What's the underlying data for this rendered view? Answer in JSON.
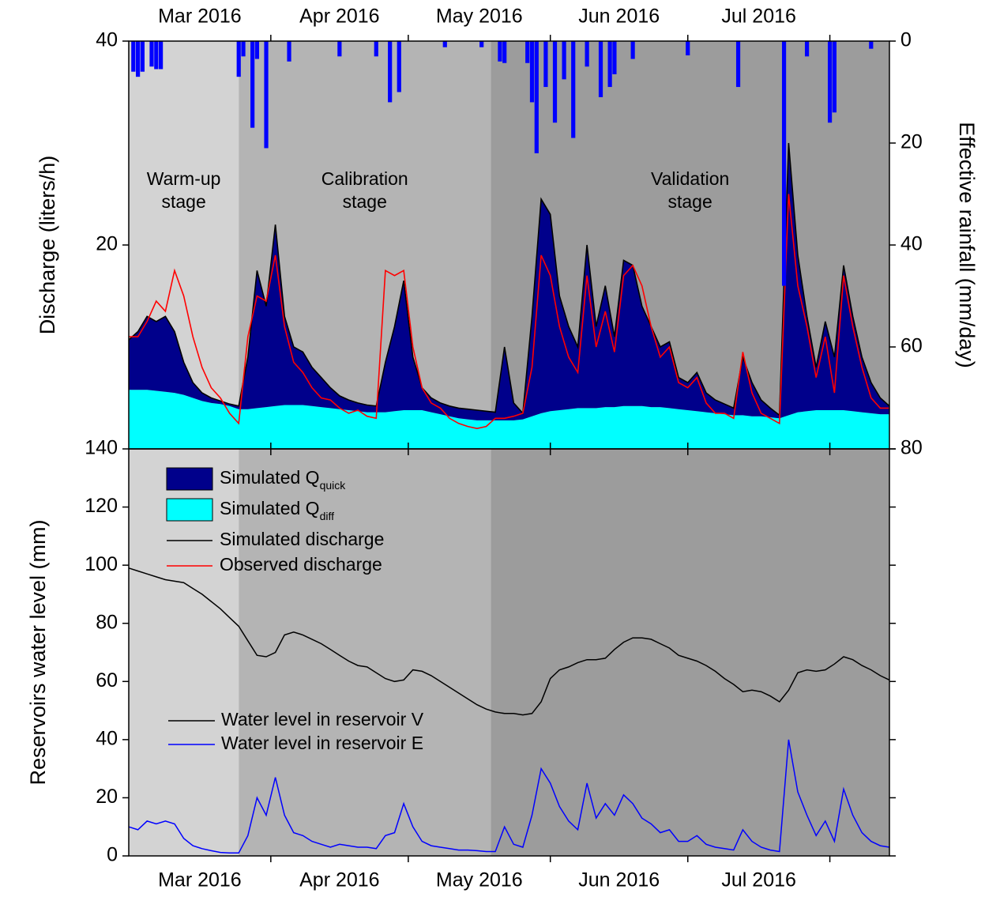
{
  "chart_data": [
    {
      "type": "hydrograph",
      "ylabel": "Discharge (liters/h)",
      "y2label": "Effective rainfall (mm/day)",
      "xlim": [
        0,
        166
      ],
      "xticks": [
        {
          "value": 15.5,
          "label": "Mar 2016"
        },
        {
          "value": 46,
          "label": "Apr 2016"
        },
        {
          "value": 76.5,
          "label": "May 2016"
        },
        {
          "value": 107,
          "label": "Jun 2016"
        },
        {
          "value": 137.5,
          "label": "Jul 2016"
        }
      ],
      "xminor": [
        31,
        61,
        92,
        122,
        153
      ],
      "ylim": [
        0,
        40
      ],
      "yticks": [
        20,
        40
      ],
      "y2lim": [
        0,
        80
      ],
      "y2ticks": [
        0,
        20,
        40,
        60,
        80
      ],
      "y2_inverted": true,
      "stages": [
        {
          "label": [
            "Warm-up",
            "stage"
          ],
          "start": 0,
          "end": 24,
          "color": "#d3d3d3"
        },
        {
          "label": [
            "Calibration",
            "stage"
          ],
          "start": 24,
          "end": 79,
          "color": "#b4b4b4"
        },
        {
          "label": [
            "Validation",
            "stage"
          ],
          "start": 79,
          "end": 166,
          "color": "#9c9c9c"
        }
      ],
      "x": [
        0,
        2,
        4,
        6,
        8,
        10,
        12,
        14,
        16,
        18,
        20,
        22,
        24,
        26,
        28,
        30,
        32,
        34,
        36,
        38,
        40,
        42,
        44,
        46,
        48,
        50,
        52,
        54,
        56,
        58,
        60,
        62,
        64,
        66,
        68,
        70,
        72,
        74,
        76,
        78,
        80,
        82,
        84,
        86,
        88,
        90,
        92,
        94,
        96,
        98,
        100,
        102,
        104,
        106,
        108,
        110,
        112,
        114,
        116,
        118,
        120,
        122,
        124,
        126,
        128,
        130,
        132,
        134,
        136,
        138,
        140,
        142,
        144,
        146,
        148,
        150,
        152,
        154,
        156,
        158,
        160,
        162,
        164,
        166
      ],
      "series": [
        {
          "name": "Simulated Q",
          "subscript": "quick",
          "kind": "area",
          "color": "#00008b",
          "values": [
            4.9,
            5.7,
            7.2,
            6.8,
            7.4,
            6.0,
            3.2,
            1.5,
            0.8,
            0.5,
            0.3,
            0.2,
            0.3,
            5.1,
            13.5,
            9.9,
            17.8,
            8.7,
            5.7,
            5.2,
            3.8,
            2.9,
            2.0,
            1.3,
            1.0,
            0.8,
            0.7,
            0.6,
            4.9,
            8.3,
            12.7,
            5.2,
            2.2,
            1.4,
            1.1,
            1.0,
            1.0,
            1.0,
            1.0,
            0.9,
            0.8,
            7.2,
            1.7,
            0.6,
            9.8,
            21.0,
            19.3,
            11.2,
            8.1,
            6.0,
            16.0,
            8.0,
            11.9,
            6.9,
            14.3,
            13.8,
            9.8,
            7.9,
            5.9,
            6.5,
            3.1,
            2.7,
            3.8,
            1.9,
            1.3,
            1.0,
            0.7,
            5.7,
            3.3,
            1.6,
            0.9,
            0.3,
            26.7,
            15.4,
            9.3,
            4.2,
            8.7,
            5.2,
            14.2,
            9.3,
            5.4,
            3.0,
            1.6,
            0.8
          ]
        },
        {
          "name": "Simulated Q",
          "subscript": "diff",
          "kind": "area",
          "color": "#00ffff",
          "values": [
            5.8,
            5.8,
            5.8,
            5.7,
            5.6,
            5.5,
            5.3,
            5.0,
            4.7,
            4.5,
            4.4,
            4.2,
            3.9,
            3.9,
            4.0,
            4.1,
            4.2,
            4.3,
            4.3,
            4.3,
            4.2,
            4.1,
            4.0,
            3.9,
            3.8,
            3.7,
            3.6,
            3.6,
            3.6,
            3.7,
            3.8,
            3.8,
            3.8,
            3.6,
            3.4,
            3.2,
            3.0,
            2.9,
            2.8,
            2.8,
            2.8,
            2.8,
            2.8,
            2.9,
            3.2,
            3.5,
            3.7,
            3.8,
            3.9,
            4.0,
            4.0,
            4.0,
            4.1,
            4.1,
            4.2,
            4.2,
            4.2,
            4.1,
            4.1,
            4.0,
            3.9,
            3.8,
            3.7,
            3.6,
            3.5,
            3.4,
            3.3,
            3.3,
            3.2,
            3.2,
            3.1,
            3.0,
            3.3,
            3.6,
            3.7,
            3.8,
            3.8,
            3.8,
            3.8,
            3.7,
            3.6,
            3.5,
            3.4,
            3.4
          ]
        },
        {
          "name": "Simulated discharge",
          "kind": "line",
          "color": "#000000",
          "values": [
            10.7,
            11.5,
            13.0,
            12.5,
            13.0,
            11.5,
            8.5,
            6.5,
            5.5,
            5.0,
            4.7,
            4.4,
            4.2,
            9.0,
            17.5,
            14.0,
            22.0,
            13.0,
            10.0,
            9.5,
            8.0,
            7.0,
            6.0,
            5.2,
            4.8,
            4.5,
            4.3,
            4.2,
            8.5,
            12.0,
            16.5,
            9.0,
            6.0,
            5.0,
            4.5,
            4.2,
            4.0,
            3.9,
            3.8,
            3.7,
            3.6,
            10.0,
            4.5,
            3.5,
            13.0,
            24.5,
            23.0,
            15.0,
            12.0,
            10.0,
            20.0,
            12.0,
            16.0,
            11.0,
            18.5,
            18.0,
            14.0,
            12.0,
            10.0,
            10.5,
            7.0,
            6.5,
            7.5,
            5.5,
            4.8,
            4.4,
            4.0,
            9.0,
            6.5,
            4.8,
            4.0,
            3.3,
            30.0,
            19.0,
            13.0,
            8.0,
            12.5,
            9.0,
            18.0,
            13.0,
            9.0,
            6.5,
            5.0,
            4.2
          ]
        },
        {
          "name": "Observed discharge",
          "kind": "line",
          "color": "#ff0000",
          "values": [
            11.0,
            11.0,
            12.5,
            14.5,
            13.5,
            17.5,
            15.0,
            11.0,
            8.0,
            6.0,
            5.0,
            3.5,
            2.5,
            11.0,
            15.0,
            14.5,
            19.0,
            12.0,
            8.5,
            7.5,
            6.0,
            5.0,
            4.8,
            4.0,
            3.5,
            3.8,
            3.2,
            3.0,
            17.5,
            17.0,
            17.5,
            10.0,
            6.0,
            4.5,
            4.0,
            3.0,
            2.5,
            2.2,
            2.0,
            2.2,
            3.0,
            3.0,
            3.2,
            3.5,
            8.0,
            19.0,
            17.0,
            12.0,
            9.0,
            7.5,
            17.0,
            10.0,
            13.5,
            9.5,
            17.0,
            18.0,
            16.0,
            12.0,
            9.0,
            10.0,
            6.5,
            6.0,
            7.0,
            4.5,
            3.5,
            3.5,
            3.0,
            9.5,
            5.5,
            3.5,
            3.0,
            2.5,
            25.0,
            16.0,
            12.0,
            7.0,
            11.0,
            5.5,
            17.0,
            12.0,
            8.0,
            5.0,
            4.0,
            4.0
          ]
        },
        {
          "kind": "bar",
          "axis": "y2",
          "color": "#0000ff",
          "x": [
            1,
            2,
            3,
            5,
            6,
            7,
            24,
            25,
            27,
            28,
            30,
            35,
            46,
            54,
            57,
            59,
            69,
            77,
            81,
            82,
            87,
            88,
            89,
            91,
            93,
            95,
            97,
            100,
            103,
            105,
            106,
            110,
            122,
            133,
            143,
            148,
            153,
            154,
            162
          ],
          "values": [
            6,
            7,
            6,
            5,
            5.5,
            5.5,
            7,
            3,
            17,
            3.5,
            21,
            4,
            3,
            3,
            12,
            10,
            1.2,
            1.2,
            4,
            4.3,
            4.3,
            12,
            22,
            9,
            16,
            7.5,
            19,
            5,
            11,
            9,
            6.5,
            3.5,
            2.8,
            9,
            48,
            3,
            16,
            14,
            1.5
          ]
        }
      ]
    },
    {
      "type": "line",
      "ylabel": "Reservoirs water level (mm)",
      "xlim": [
        0,
        166
      ],
      "xticks": [
        {
          "value": 15.5,
          "label": "Mar 2016"
        },
        {
          "value": 46,
          "label": "Apr 2016"
        },
        {
          "value": 76.5,
          "label": "May 2016"
        },
        {
          "value": 107,
          "label": "Jun 2016"
        },
        {
          "value": 137.5,
          "label": "Jul 2016"
        }
      ],
      "xminor": [
        31,
        61,
        92,
        122,
        153
      ],
      "ylim": [
        0,
        140
      ],
      "yticks": [
        0,
        20,
        40,
        60,
        80,
        100,
        120,
        140
      ],
      "x": [
        0,
        2,
        4,
        6,
        8,
        10,
        12,
        14,
        16,
        18,
        20,
        22,
        24,
        26,
        28,
        30,
        32,
        34,
        36,
        38,
        40,
        42,
        44,
        46,
        48,
        50,
        52,
        54,
        56,
        58,
        60,
        62,
        64,
        66,
        68,
        70,
        72,
        74,
        76,
        78,
        80,
        82,
        84,
        86,
        88,
        90,
        92,
        94,
        96,
        98,
        100,
        102,
        104,
        106,
        108,
        110,
        112,
        114,
        116,
        118,
        120,
        122,
        124,
        126,
        128,
        130,
        132,
        134,
        136,
        138,
        140,
        142,
        144,
        146,
        148,
        150,
        152,
        154,
        156,
        158,
        160,
        162,
        164,
        166
      ],
      "series": [
        {
          "name": "Water level in reservoir V",
          "color": "#000000",
          "values": [
            99,
            98,
            97,
            96,
            95,
            94.5,
            94,
            92,
            90,
            87.5,
            85,
            82,
            79,
            74,
            69,
            68.5,
            70,
            76,
            77,
            76,
            74.5,
            73,
            71,
            69,
            67,
            65.5,
            65,
            63,
            61,
            60,
            60.5,
            64,
            63.5,
            62,
            60,
            58,
            56,
            54,
            52,
            50.5,
            49.5,
            49,
            49,
            48.5,
            49,
            53,
            61,
            64,
            65,
            66.5,
            67.5,
            67.5,
            68,
            71,
            73.5,
            75,
            75,
            74.5,
            73,
            71.5,
            69,
            68,
            67,
            65.5,
            63.5,
            61,
            59,
            56.5,
            57,
            56.5,
            55,
            53,
            57,
            63,
            64,
            63.5,
            64,
            66,
            68.5,
            67.5,
            65.5,
            64,
            62,
            60.5
          ]
        },
        {
          "name": "Water level in reservoir E",
          "color": "#0000ff",
          "values": [
            10,
            9,
            12,
            11,
            12,
            11,
            6,
            3.5,
            2.5,
            1.8,
            1.2,
            1.0,
            1.0,
            7,
            20,
            14,
            27,
            14,
            8,
            7,
            5,
            4,
            3,
            4,
            3.5,
            3,
            3,
            2.5,
            7,
            8,
            18,
            10,
            5,
            3.5,
            3,
            2.5,
            2,
            2,
            1.8,
            1.5,
            1.5,
            10,
            4,
            3,
            14,
            30,
            25,
            17,
            12,
            9,
            25,
            13,
            18,
            14,
            21,
            18,
            13,
            11,
            8,
            9,
            5,
            5,
            7,
            4,
            3,
            2.5,
            2,
            9,
            5,
            3,
            2,
            1.5,
            40,
            22,
            14,
            7,
            12,
            5,
            23,
            14,
            8,
            5,
            3.5,
            3
          ]
        }
      ]
    }
  ]
}
